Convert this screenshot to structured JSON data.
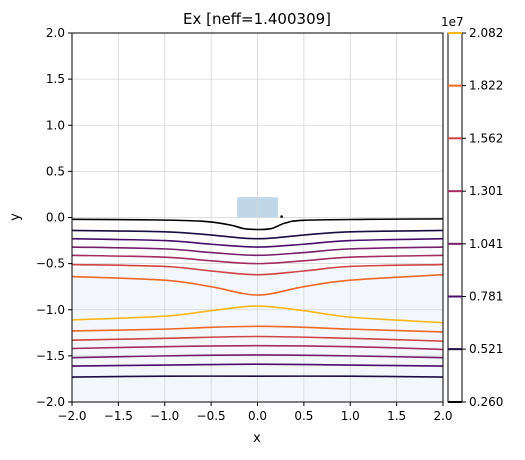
{
  "chart_data": {
    "type": "contour",
    "title": "Ex [neff=1.400309]",
    "xlabel": "x",
    "ylabel": "y",
    "xlim": [
      -2.0,
      2.0
    ],
    "ylim": [
      -2.0,
      2.0
    ],
    "x_ticks": [
      "−2.0",
      "−1.5",
      "−1.0",
      "−0.5",
      "0.0",
      "0.5",
      "1.0",
      "1.5",
      "2.0"
    ],
    "y_ticks": [
      "2.0",
      "1.5",
      "1.0",
      "0.5",
      "0.0",
      "−0.5",
      "−1.0",
      "−1.5",
      "−2.0"
    ],
    "grid": true,
    "colormap": "inferno",
    "colorbar": {
      "multiplier": "1e7",
      "range": [
        0.26,
        2.082
      ],
      "levels": [
        0.26,
        0.521,
        0.781,
        1.041,
        1.301,
        1.562,
        1.822,
        2.082
      ],
      "tick_labels": [
        "0.260",
        "0.521",
        "0.781",
        "1.041",
        "1.301",
        "1.562",
        "1.822",
        "2.082"
      ],
      "level_colors": [
        "#000004",
        "#1b0c41",
        "#4a0c6b",
        "#781c6d",
        "#a52c60",
        "#cf4446",
        "#ed6925",
        "#fbb61a"
      ]
    },
    "regions": [
      {
        "name": "waveguide core",
        "x": [
          -0.22,
          0.22
        ],
        "y": [
          0.0,
          0.22
        ],
        "color": "#c0d7ea"
      },
      {
        "name": "substrate",
        "x": [
          -2.0,
          2.0
        ],
        "y": [
          -2.0,
          -0.55
        ],
        "color": "#f3f7fb"
      }
    ],
    "contours": [
      {
        "level": 0.26,
        "color": "#000004",
        "points": [
          [
            -2.0,
            -0.02
          ],
          [
            -1.2,
            -0.025
          ],
          [
            -0.6,
            -0.04
          ],
          [
            -0.3,
            -0.08
          ],
          [
            -0.15,
            -0.12
          ],
          [
            0.0,
            -0.13
          ],
          [
            0.15,
            -0.12
          ],
          [
            0.3,
            -0.06
          ],
          [
            0.5,
            -0.03
          ],
          [
            1.2,
            -0.02
          ],
          [
            2.0,
            -0.015
          ]
        ]
      },
      {
        "level": 0.521,
        "color": "#1b0c41",
        "points": [
          [
            -2.0,
            -0.14
          ],
          [
            -1.0,
            -0.155
          ],
          [
            -0.5,
            -0.19
          ],
          [
            -0.2,
            -0.22
          ],
          [
            0.0,
            -0.23
          ],
          [
            0.2,
            -0.22
          ],
          [
            0.5,
            -0.19
          ],
          [
            1.0,
            -0.155
          ],
          [
            2.0,
            -0.14
          ]
        ]
      },
      {
        "level": 0.781,
        "color": "#4a0c6b",
        "points": [
          [
            -2.0,
            -0.23
          ],
          [
            -1.0,
            -0.25
          ],
          [
            -0.5,
            -0.29
          ],
          [
            0.0,
            -0.32
          ],
          [
            0.5,
            -0.29
          ],
          [
            1.0,
            -0.25
          ],
          [
            2.0,
            -0.23
          ]
        ]
      },
      {
        "level": 1.041,
        "color": "#781c6d",
        "points": [
          [
            -2.0,
            -0.32
          ],
          [
            -1.0,
            -0.34
          ],
          [
            -0.5,
            -0.38
          ],
          [
            0.0,
            -0.41
          ],
          [
            0.5,
            -0.38
          ],
          [
            1.0,
            -0.34
          ],
          [
            2.0,
            -0.32
          ]
        ]
      },
      {
        "level": 1.301,
        "color": "#a52c60",
        "points": [
          [
            -2.0,
            -0.41
          ],
          [
            -1.0,
            -0.43
          ],
          [
            -0.5,
            -0.47
          ],
          [
            0.0,
            -0.5
          ],
          [
            0.5,
            -0.47
          ],
          [
            1.0,
            -0.43
          ],
          [
            2.0,
            -0.41
          ]
        ]
      },
      {
        "level": 1.562,
        "color": "#cf4446",
        "points": [
          [
            -2.0,
            -0.51
          ],
          [
            -1.0,
            -0.53
          ],
          [
            -0.5,
            -0.58
          ],
          [
            0.0,
            -0.62
          ],
          [
            0.5,
            -0.58
          ],
          [
            1.0,
            -0.53
          ],
          [
            2.0,
            -0.51
          ]
        ]
      },
      {
        "level": 1.822,
        "color": "#ed6925",
        "points": [
          [
            -2.0,
            -0.64
          ],
          [
            -1.0,
            -0.68
          ],
          [
            -0.5,
            -0.75
          ],
          [
            0.0,
            -0.84
          ],
          [
            0.5,
            -0.75
          ],
          [
            1.0,
            -0.68
          ],
          [
            2.0,
            -0.62
          ]
        ]
      },
      {
        "level": 2.082,
        "color": "#fbb61a",
        "points": [
          [
            -2.0,
            -1.11
          ],
          [
            -1.0,
            -1.07
          ],
          [
            -0.5,
            -1.01
          ],
          [
            0.0,
            -0.96
          ],
          [
            0.5,
            -1.01
          ],
          [
            1.0,
            -1.08
          ],
          [
            2.0,
            -1.14
          ]
        ]
      },
      {
        "level": 1.822,
        "color": "#ed6925",
        "points": [
          [
            -2.0,
            -1.23
          ],
          [
            -1.0,
            -1.21
          ],
          [
            -0.5,
            -1.19
          ],
          [
            0.0,
            -1.18
          ],
          [
            0.5,
            -1.19
          ],
          [
            1.0,
            -1.21
          ],
          [
            2.0,
            -1.24
          ]
        ]
      },
      {
        "level": 1.562,
        "color": "#cf4446",
        "points": [
          [
            -2.0,
            -1.33
          ],
          [
            -1.0,
            -1.31
          ],
          [
            0.0,
            -1.29
          ],
          [
            1.0,
            -1.31
          ],
          [
            2.0,
            -1.34
          ]
        ]
      },
      {
        "level": 1.301,
        "color": "#a52c60",
        "points": [
          [
            -2.0,
            -1.42
          ],
          [
            -1.0,
            -1.4
          ],
          [
            0.0,
            -1.39
          ],
          [
            1.0,
            -1.4
          ],
          [
            2.0,
            -1.43
          ]
        ]
      },
      {
        "level": 1.041,
        "color": "#781c6d",
        "points": [
          [
            -2.0,
            -1.52
          ],
          [
            -1.0,
            -1.5
          ],
          [
            0.0,
            -1.49
          ],
          [
            1.0,
            -1.5
          ],
          [
            2.0,
            -1.52
          ]
        ]
      },
      {
        "level": 0.781,
        "color": "#4a0c6b",
        "points": [
          [
            -2.0,
            -1.61
          ],
          [
            -1.0,
            -1.6
          ],
          [
            0.0,
            -1.59
          ],
          [
            1.0,
            -1.6
          ],
          [
            2.0,
            -1.61
          ]
        ]
      },
      {
        "level": 0.521,
        "color": "#1b0c41",
        "points": [
          [
            -2.0,
            -1.73
          ],
          [
            -1.0,
            -1.72
          ],
          [
            0.0,
            -1.72
          ],
          [
            1.0,
            -1.72
          ],
          [
            2.0,
            -1.73
          ]
        ]
      }
    ]
  }
}
